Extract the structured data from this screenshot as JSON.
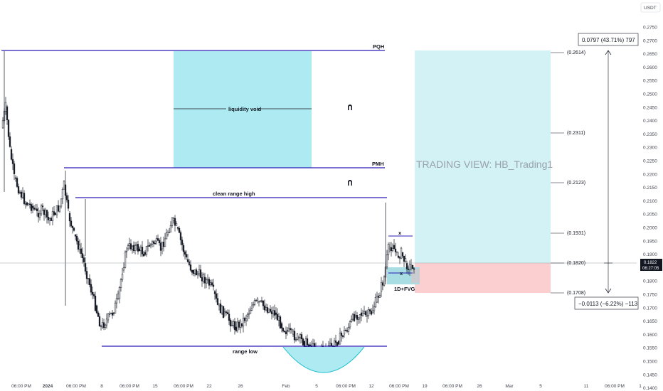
{
  "currency_label": "USDT",
  "watermark": "TRADING VIEW: HB_Trading1",
  "current_price": {
    "value": "0.1822",
    "timer": "06:27:05"
  },
  "levels": {
    "pqh": "PQH",
    "pmh": "PMH",
    "clean_range_high": "clean range high",
    "range_low": "range low",
    "liquidity_void": "liquidity void",
    "fvg": "1D+FVG",
    "x_top": "x",
    "x_bottom": "x"
  },
  "position": {
    "profit_label": "0.0797 (43.71%) 797",
    "loss_label": "−0.0113 (−6.22%) −113",
    "target_label": "(0.2614)",
    "entry_label": "(0.1820)",
    "stop_label": "(0.1708)",
    "mid_labels": [
      "(0.2311)",
      "(0.2123)",
      "(0.1931)"
    ]
  },
  "price_axis": [
    "0.2750",
    "0.2700",
    "0.2650",
    "0.2600",
    "0.2550",
    "0.2500",
    "0.2450",
    "0.2400",
    "0.2350",
    "0.2300",
    "0.2250",
    "0.2200",
    "0.2150",
    "0.2100",
    "0.2050",
    "0.2000",
    "0.1950",
    "0.1900",
    "0.1850",
    "0.1800",
    "0.1750",
    "0.1700",
    "0.1650",
    "0.1600",
    "0.1550",
    "0.1500",
    "0.1450",
    "0.1400"
  ],
  "time_axis": [
    "06:00 PM",
    "2024",
    "06:00 PM",
    "8",
    "06:00 PM",
    "15",
    "06:00 PM",
    "22",
    "26",
    "Feb",
    "5",
    "06:00 PM",
    "12",
    "06:00 PM",
    "19",
    "06:00 PM",
    "26",
    "Mar",
    "5",
    "11",
    "06:00 PM",
    "1"
  ],
  "colors": {
    "up": "#ffffff",
    "down": "#131722",
    "level_line": "#2a1bb8",
    "void_fill": "#aeeaf2",
    "target_fill": "#d2f2f5",
    "stop_fill": "#fbcfd0",
    "fvg_fill": "#a8dde3",
    "arc": "#1bbfcf"
  }
}
